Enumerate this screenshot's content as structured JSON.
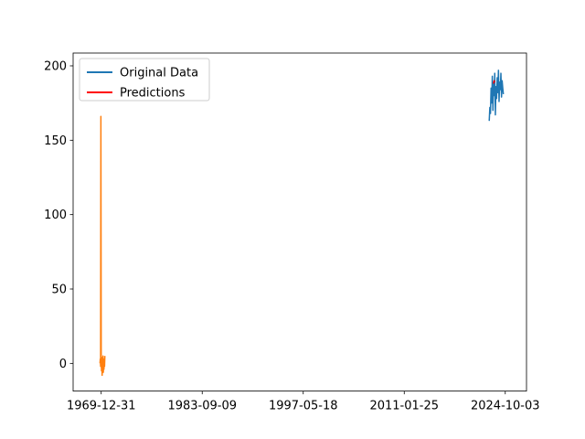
{
  "chart_data": {
    "type": "line",
    "title": "",
    "xlabel": "",
    "ylabel": "",
    "x_type": "date",
    "xlim": [
      "1966-03-12",
      "2027-08-20"
    ],
    "ylim": [
      -18.6,
      208.6
    ],
    "x_ticks": [
      "1969-12-31",
      "1983-09-09",
      "1997-05-18",
      "2011-01-25",
      "2024-10-03"
    ],
    "y_ticks": [
      0,
      50,
      100,
      150,
      200
    ],
    "grid": false,
    "legend_position": "upper-left",
    "legend": [
      "Original Data",
      "Predictions"
    ],
    "series": [
      {
        "name": "Original Data",
        "color": "#1f77b4",
        "x": [
          "2022-08-01",
          "2022-09-01",
          "2022-10-01",
          "2022-11-01",
          "2022-12-01",
          "2023-01-01",
          "2023-02-01",
          "2023-03-01",
          "2023-04-01",
          "2023-05-01",
          "2023-06-01",
          "2023-07-01",
          "2023-08-01",
          "2023-09-01",
          "2023-10-01",
          "2023-11-01",
          "2023-12-01",
          "2024-01-01",
          "2024-02-01",
          "2024-03-01",
          "2024-04-01",
          "2024-05-01",
          "2024-06-01",
          "2024-07-01"
        ],
        "y": [
          163,
          172,
          168,
          185,
          175,
          193,
          170,
          188,
          180,
          195,
          167,
          186,
          178,
          192,
          182,
          197,
          176,
          189,
          184,
          195,
          179,
          190,
          185,
          181
        ]
      },
      {
        "name": "Predictions",
        "color": "#ff0000",
        "x": [
          "2023-03-01",
          "2023-04-01",
          "2023-05-01"
        ],
        "y": [
          188,
          190,
          189
        ]
      },
      {
        "name": "",
        "color": "#ff7f0e",
        "x": [
          "1969-11-01",
          "1969-11-15",
          "1969-12-01",
          "1969-12-15",
          "1970-01-01",
          "1970-01-15",
          "1970-02-01",
          "1970-02-15",
          "1970-03-01",
          "1970-03-15",
          "1970-04-01",
          "1970-04-15",
          "1970-05-01",
          "1970-05-15",
          "1970-06-01",
          "1970-06-15",
          "1970-07-01"
        ],
        "y": [
          0,
          3,
          -2,
          166,
          2,
          -5,
          4,
          -8,
          1,
          -3,
          5,
          -6,
          2,
          -4,
          3,
          -2,
          5
        ]
      }
    ]
  }
}
